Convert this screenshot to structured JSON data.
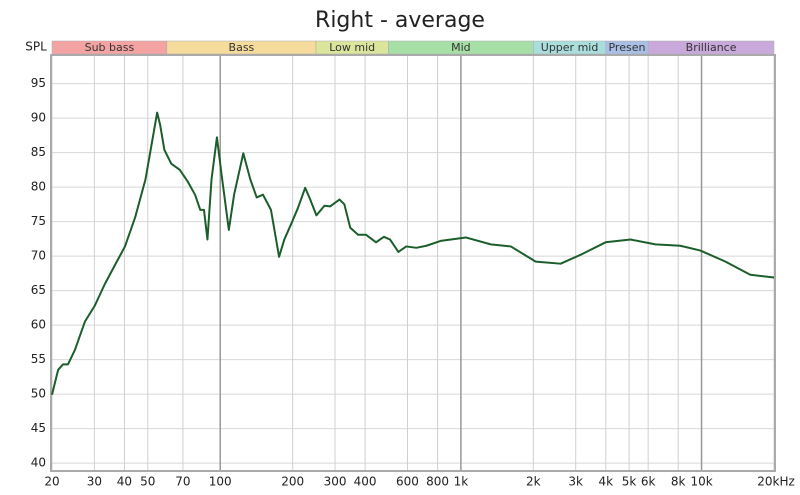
{
  "chart_data": {
    "type": "line",
    "title": "Right - average",
    "y_label": "SPL",
    "xscale": "log",
    "grid": true,
    "xlim": [
      20,
      20000
    ],
    "ylim": [
      39,
      99
    ],
    "xticks": [
      20,
      30,
      40,
      50,
      70,
      100,
      200,
      300,
      400,
      600,
      800,
      {
        "value": 1000,
        "label": "1k"
      },
      {
        "value": 2000,
        "label": "2k"
      },
      {
        "value": 3000,
        "label": "3k"
      },
      {
        "value": 4000,
        "label": "4k"
      },
      {
        "value": 5000,
        "label": "5k"
      },
      {
        "value": 6000,
        "label": "6k"
      },
      {
        "value": 8000,
        "label": "8k"
      },
      {
        "value": 10000,
        "label": "10k"
      },
      {
        "value": 20000,
        "label": "20kHz"
      }
    ],
    "yticks": [
      40,
      45,
      50,
      55,
      60,
      65,
      70,
      75,
      80,
      85,
      90,
      95
    ],
    "bands": [
      {
        "label": "Sub bass",
        "start": 20,
        "end": 60,
        "color": "#f4a3a3"
      },
      {
        "label": "Bass",
        "start": 60,
        "end": 250,
        "color": "#f6dc9c"
      },
      {
        "label": "Low mid",
        "start": 250,
        "end": 500,
        "color": "#dbe69c"
      },
      {
        "label": "Mid",
        "start": 500,
        "end": 2000,
        "color": "#a7e0a7"
      },
      {
        "label": "Upper mid",
        "start": 2000,
        "end": 4000,
        "color": "#a9dedc"
      },
      {
        "label": "Presen",
        "start": 4000,
        "end": 6000,
        "color": "#a9bfe6"
      },
      {
        "label": "Brilliance",
        "start": 6000,
        "end": 20000,
        "color": "#c9a9dc"
      }
    ],
    "x": [
      20,
      21.2,
      22.2,
      23.3,
      24.9,
      27.4,
      30.1,
      33.1,
      36.4,
      40.2,
      44.3,
      48.9,
      52,
      54.7,
      56.3,
      58.6,
      62.6,
      67.9,
      73.3,
      78.6,
      82.6,
      85.6,
      88.5,
      92,
      96.9,
      101.3,
      108.6,
      114.2,
      124.7,
      133.4,
      141.8,
      150.5,
      162.5,
      175.6,
      184.6,
      197.4,
      210.5,
      225.4,
      236.6,
      251,
      271,
      286,
      313,
      328,
      347,
      374,
      403,
      444,
      479,
      508,
      550,
      593,
      653,
      719,
      824,
      1048,
      1331,
      1613,
      2045,
      2597,
      3148,
      3993,
      5068,
      6432,
      8163,
      9895,
      12570,
      15940,
      20000
    ],
    "series": [
      {
        "color": "#1b5e2c",
        "values": [
          49.9,
          53.5,
          54.3,
          54.3,
          56.4,
          60.5,
          62.8,
          65.9,
          68.6,
          71.4,
          75.6,
          81.1,
          86.4,
          90.8,
          89,
          85.4,
          83.4,
          82.5,
          80.8,
          78.9,
          76.7,
          76.7,
          72.4,
          81.1,
          87.2,
          81.8,
          73.8,
          78.9,
          84.9,
          81.1,
          78.5,
          78.9,
          76.7,
          69.9,
          72.4,
          74.7,
          77,
          79.9,
          78.2,
          75.9,
          77.3,
          77.2,
          78.2,
          77.5,
          74.1,
          73.1,
          73.1,
          72,
          72.8,
          72.4,
          70.6,
          71.4,
          71.2,
          71.5,
          72.2,
          72.7,
          71.7,
          71.4,
          69.2,
          68.9,
          70.2,
          72,
          72.4,
          71.7,
          71.5,
          70.8,
          69.2,
          67.3,
          66.9
        ]
      }
    ]
  }
}
